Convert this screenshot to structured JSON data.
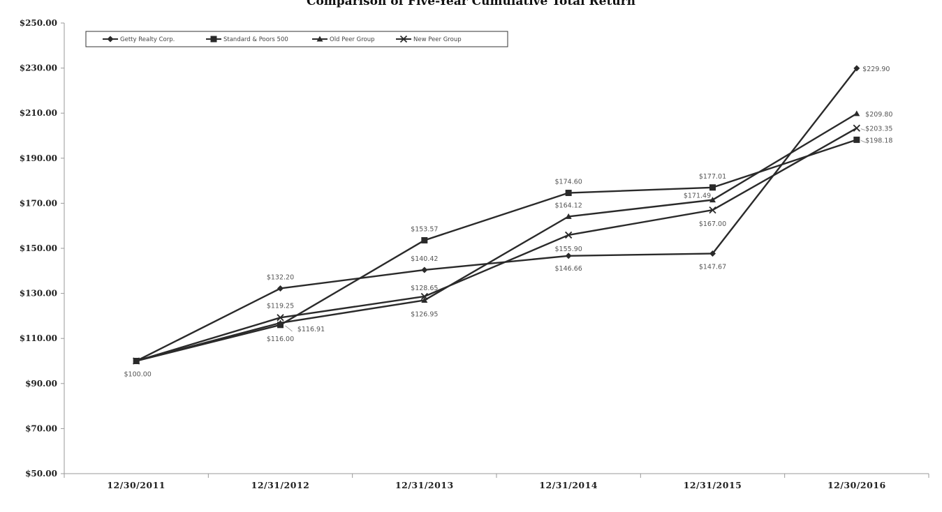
{
  "chart_data": {
    "type": "line",
    "title": "Comparison of Five-Year Cumulative Total Return",
    "xlabel": "",
    "ylabel": "",
    "categories": [
      "12/30/2011",
      "12/31/2012",
      "12/31/2013",
      "12/31/2014",
      "12/31/2015",
      "12/30/2016"
    ],
    "ylim": [
      50,
      250
    ],
    "yticks": [
      "$50.00",
      "$70.00",
      "$90.00",
      "$110.00",
      "$130.00",
      "$150.00",
      "$170.00",
      "$190.00",
      "$210.00",
      "$230.00",
      "$250.00"
    ],
    "grid": false,
    "legend_position": "top-left",
    "series": [
      {
        "name": "Getty Realty Corp.",
        "marker": "diamond",
        "values": [
          100,
          132.2,
          140.42,
          146.66,
          147.67,
          229.9
        ],
        "labels": [
          "$100.00",
          "$132.20",
          "$140.42",
          "$146.66",
          "$147.67",
          "$229.90"
        ]
      },
      {
        "name": "Standard & Poors 500",
        "marker": "square",
        "values": [
          100,
          116.0,
          153.57,
          174.6,
          177.01,
          198.18
        ],
        "labels": [
          "",
          "$116.00",
          "$153.57",
          "$174.60",
          "$177.01",
          "$198.18"
        ]
      },
      {
        "name": "Old Peer Group",
        "marker": "triangle",
        "values": [
          100,
          116.91,
          126.95,
          164.12,
          171.49,
          209.8
        ],
        "labels": [
          "",
          "$116.91",
          "$126.95",
          "$164.12",
          "$171.49",
          "$209.80"
        ]
      },
      {
        "name": "New Peer Group",
        "marker": "x",
        "values": [
          100,
          119.25,
          128.65,
          155.9,
          167.0,
          203.35
        ],
        "labels": [
          "",
          "$119.25",
          "$128.65",
          "$155.90",
          "$167.00",
          "$203.35"
        ]
      }
    ],
    "colors": {
      "line": "#2a2a2a",
      "axis": "#999999",
      "label": "#555555"
    }
  }
}
